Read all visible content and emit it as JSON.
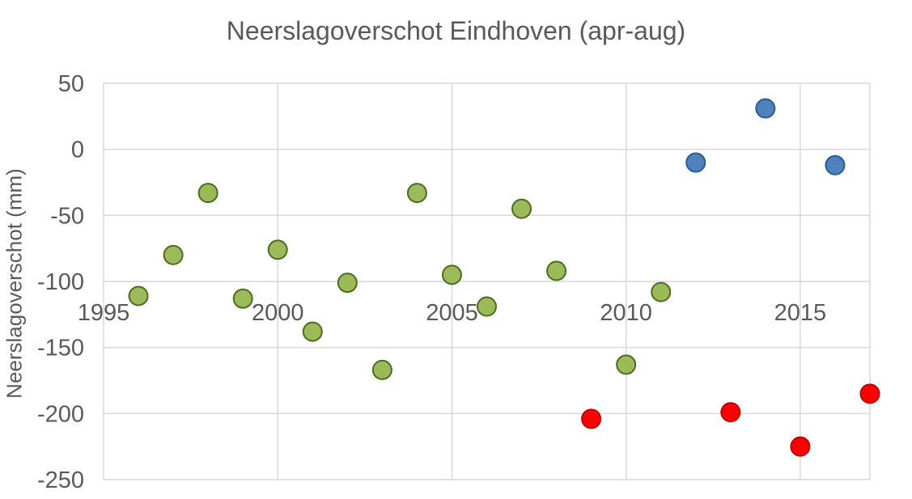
{
  "title": "Neerslagoverschot Eindhoven (apr-aug)",
  "y_axis_title": "Neerslagoverschot (mm)",
  "colors": {
    "grid": "#d6d6d6",
    "text": "#595959",
    "green_fill": "#9bbb59",
    "green_border": "#4e6b21",
    "blue_fill": "#4f81bd",
    "blue_border": "#255e91",
    "red_fill": "#fe0000",
    "red_border": "#c00000"
  },
  "chart_data": {
    "type": "scatter",
    "title": "Neerslagoverschot Eindhoven (apr-aug)",
    "xlabel": "",
    "ylabel": "Neerslagoverschot (mm)",
    "xlim": [
      1995,
      2017
    ],
    "ylim": [
      -250,
      50
    ],
    "grid": true,
    "legend": false,
    "x_ticks": [
      1995,
      2000,
      2005,
      2010,
      2015
    ],
    "y_ticks": [
      50,
      0,
      -50,
      -100,
      -150,
      -200,
      -250
    ],
    "series": [
      {
        "name": "green",
        "fill": "#9bbb59",
        "border": "#4e6b21",
        "points": [
          [
            1996,
            -111
          ],
          [
            1997,
            -80
          ],
          [
            1998,
            -33
          ],
          [
            1999,
            -113
          ],
          [
            2000,
            -76
          ],
          [
            2001,
            -138
          ],
          [
            2002,
            -101
          ],
          [
            2003,
            -167
          ],
          [
            2004,
            -33
          ],
          [
            2005,
            -95
          ],
          [
            2006,
            -119
          ],
          [
            2007,
            -45
          ],
          [
            2008,
            -92
          ],
          [
            2010,
            -163
          ],
          [
            2011,
            -108
          ]
        ]
      },
      {
        "name": "blue",
        "fill": "#4f81bd",
        "border": "#255e91",
        "points": [
          [
            2012,
            -10
          ],
          [
            2014,
            31
          ],
          [
            2016,
            -12
          ]
        ]
      },
      {
        "name": "red",
        "fill": "#fe0000",
        "border": "#c00000",
        "points": [
          [
            2009,
            -204
          ],
          [
            2013,
            -199
          ],
          [
            2015,
            -225
          ],
          [
            2017,
            -185
          ]
        ]
      }
    ]
  }
}
